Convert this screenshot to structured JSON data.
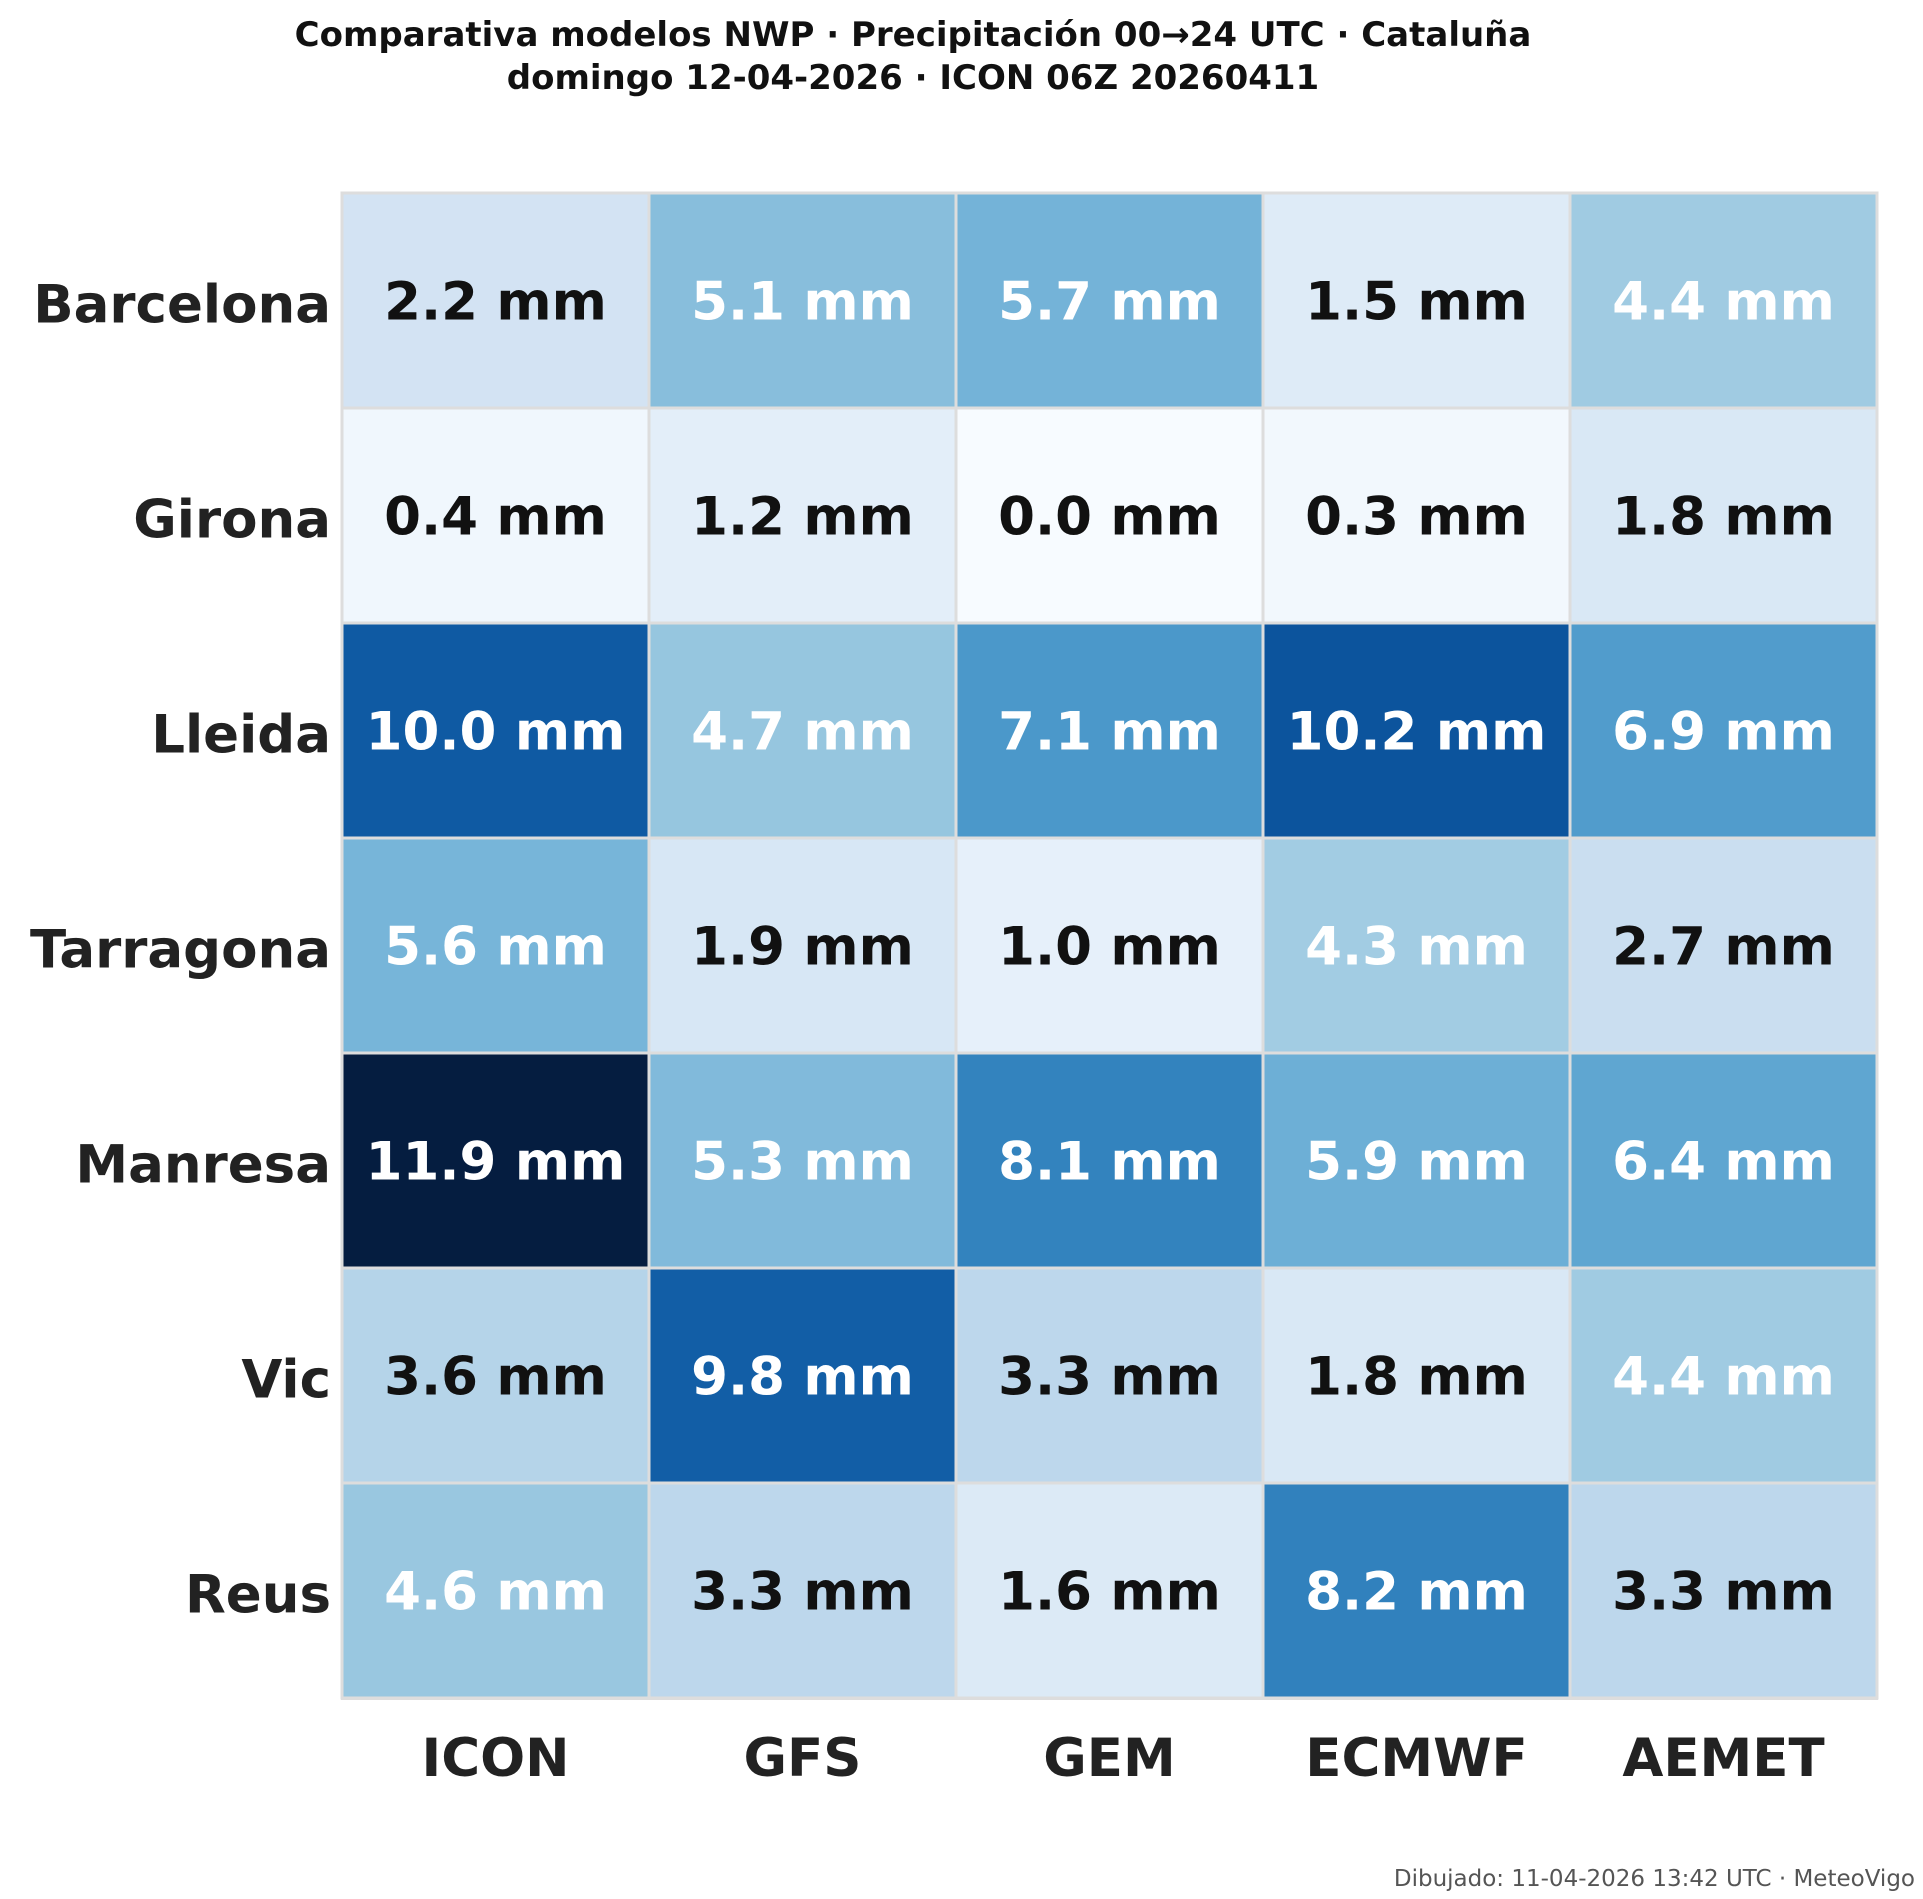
{
  "chart_data": {
    "type": "heatmap",
    "title": "Comparativa modelos NWP · Precipitación 00→24 UTC · Cataluña",
    "subtitle": "domingo 12-04-2026  ·  ICON 06Z 20260411",
    "rows": [
      "Barcelona",
      "Girona",
      "Lleida",
      "Tarragona",
      "Manresa",
      "Vic",
      "Reus"
    ],
    "columns": [
      "ICON",
      "GFS",
      "GEM",
      "ECMWF",
      "AEMET"
    ],
    "values": [
      [
        2.2,
        5.1,
        5.7,
        1.5,
        4.4
      ],
      [
        0.4,
        1.2,
        0.0,
        0.3,
        1.8
      ],
      [
        10.0,
        4.7,
        7.1,
        10.2,
        6.9
      ],
      [
        5.6,
        1.9,
        1.0,
        4.3,
        2.7
      ],
      [
        11.9,
        5.3,
        8.1,
        5.9,
        6.4
      ],
      [
        3.6,
        9.8,
        3.3,
        1.8,
        4.4
      ],
      [
        4.6,
        3.3,
        1.6,
        8.2,
        3.3
      ]
    ],
    "labels": [
      [
        "2.2 mm",
        "5.1 mm",
        "5.7 mm",
        "1.5 mm",
        "4.4 mm"
      ],
      [
        "0.4 mm",
        "1.2 mm",
        "0.0 mm",
        "0.3 mm",
        "1.8 mm"
      ],
      [
        "10.0 mm",
        "4.7 mm",
        "7.1 mm",
        "10.2 mm",
        "6.9 mm"
      ],
      [
        "5.6 mm",
        "1.9 mm",
        "1.0 mm",
        "4.3 mm",
        "2.7 mm"
      ],
      [
        "11.9 mm",
        "5.3 mm",
        "8.1 mm",
        "5.9 mm",
        "6.4 mm"
      ],
      [
        "3.6 mm",
        "9.8 mm",
        "3.3 mm",
        "1.8 mm",
        "4.4 mm"
      ],
      [
        "4.6 mm",
        "3.3 mm",
        "1.6 mm",
        "8.2 mm",
        "3.3 mm"
      ]
    ],
    "unit": "mm",
    "colormap": "Blues",
    "vmin": 0,
    "vmax": 11.9,
    "grid_color": "#dddddd"
  },
  "footer": "Dibujado: 11-04-2026 13:42 UTC · MeteoVigo"
}
